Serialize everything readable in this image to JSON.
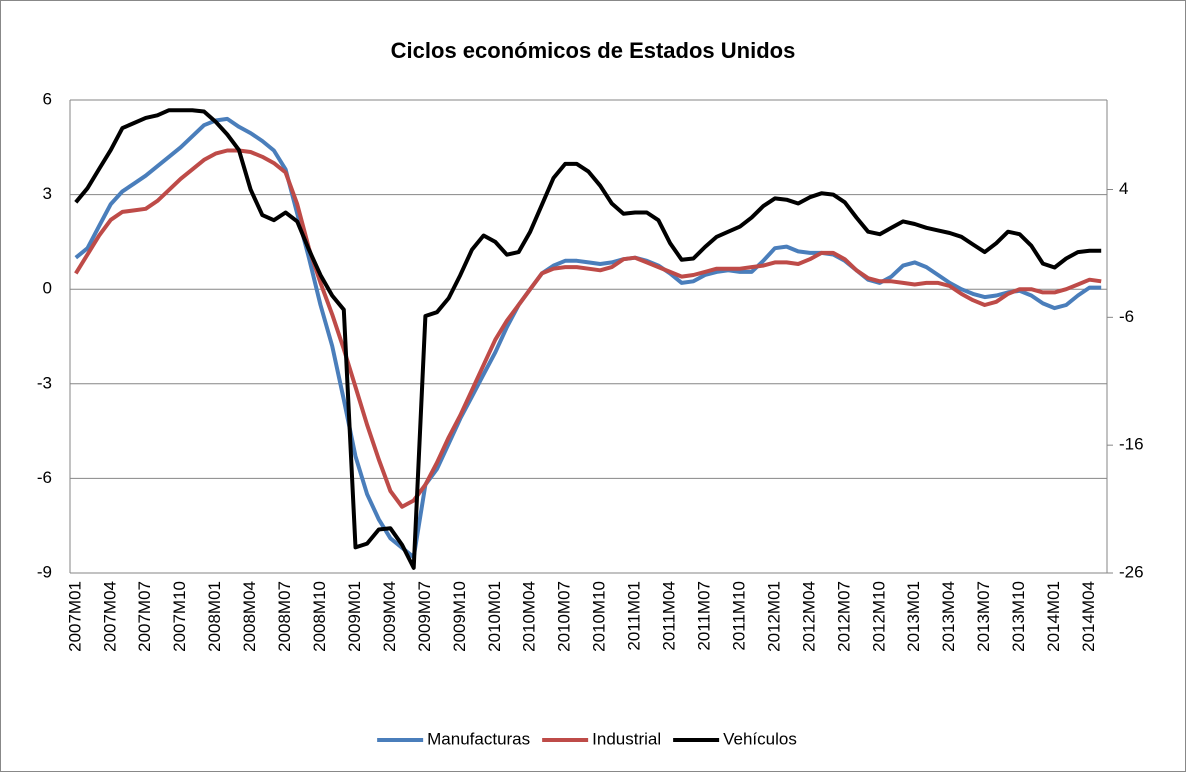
{
  "chart_data": {
    "type": "line",
    "title": "Ciclos económicos de Estados Unidos",
    "categories": [
      "2007M01",
      null,
      null,
      "2007M04",
      null,
      null,
      "2007M07",
      null,
      null,
      "2007M10",
      null,
      null,
      "2008M01",
      null,
      null,
      "2008M04",
      null,
      null,
      "2008M07",
      null,
      null,
      "2008M10",
      null,
      null,
      "2009M01",
      null,
      null,
      "2009M04",
      null,
      null,
      "2009M07",
      null,
      null,
      "2009M10",
      null,
      null,
      "2010M01",
      null,
      null,
      "2010M04",
      null,
      null,
      "2010M07",
      null,
      null,
      "2010M10",
      null,
      null,
      "2011M01",
      null,
      null,
      "2011M04",
      null,
      null,
      "2011M07",
      null,
      null,
      "2011M10",
      null,
      null,
      "2012M01",
      null,
      null,
      "2012M04",
      null,
      null,
      "2012M07",
      null,
      null,
      "2012M10",
      null,
      null,
      "2013M01",
      null,
      null,
      "2013M04",
      null,
      null,
      "2013M07",
      null,
      null,
      "2013M10",
      null,
      null,
      "2014M01",
      null,
      null,
      "2014M04",
      null
    ],
    "series": [
      {
        "name": "Manufacturas",
        "color": "#4a7ebb",
        "values": [
          1.0,
          1.3,
          2.0,
          2.7,
          3.1,
          3.35,
          3.6,
          3.9,
          4.2,
          4.5,
          4.85,
          5.2,
          5.35,
          5.4,
          5.15,
          4.95,
          4.7,
          4.4,
          3.8,
          2.4,
          1.0,
          -0.5,
          -1.8,
          -3.5,
          -5.3,
          -6.5,
          -7.3,
          -7.9,
          -8.2,
          -8.5,
          -6.2,
          -5.7,
          -4.9,
          -4.1,
          -3.4,
          -2.7,
          -2.0,
          -1.2,
          -0.5,
          0.0,
          0.5,
          0.75,
          0.9,
          0.9,
          0.85,
          0.8,
          0.85,
          0.95,
          1.0,
          0.9,
          0.75,
          0.5,
          0.2,
          0.25,
          0.45,
          0.55,
          0.6,
          0.55,
          0.55,
          0.9,
          1.3,
          1.35,
          1.2,
          1.15,
          1.15,
          1.1,
          0.9,
          0.6,
          0.3,
          0.2,
          0.4,
          0.75,
          0.85,
          0.7,
          0.45,
          0.2,
          0.0,
          -0.15,
          -0.25,
          -0.2,
          -0.1,
          -0.05,
          -0.2,
          -0.45,
          -0.6,
          -0.5,
          -0.2,
          0.05,
          0.05
        ]
      },
      {
        "name": "Industrial",
        "color": "#be4b48",
        "values": [
          0.5,
          1.1,
          1.7,
          2.2,
          2.45,
          2.5,
          2.55,
          2.8,
          3.15,
          3.5,
          3.8,
          4.1,
          4.3,
          4.4,
          4.4,
          4.35,
          4.2,
          4.0,
          3.7,
          2.7,
          1.3,
          0.2,
          -0.8,
          -1.9,
          -3.1,
          -4.3,
          -5.4,
          -6.4,
          -6.9,
          -6.7,
          -6.2,
          -5.5,
          -4.7,
          -4.0,
          -3.2,
          -2.4,
          -1.6,
          -1.0,
          -0.5,
          0.0,
          0.5,
          0.65,
          0.7,
          0.7,
          0.65,
          0.6,
          0.7,
          0.95,
          1.0,
          0.85,
          0.7,
          0.55,
          0.4,
          0.45,
          0.55,
          0.65,
          0.65,
          0.65,
          0.7,
          0.75,
          0.85,
          0.85,
          0.8,
          0.95,
          1.15,
          1.15,
          0.95,
          0.6,
          0.35,
          0.25,
          0.25,
          0.2,
          0.15,
          0.2,
          0.2,
          0.1,
          -0.15,
          -0.35,
          -0.5,
          -0.4,
          -0.15,
          0.0,
          0.0,
          -0.1,
          -0.1,
          0.0,
          0.15,
          0.3,
          0.25
        ]
      },
      {
        "name": "Vehículos",
        "color": "#000000",
        "axis": "y2",
        "values": [
          3.0,
          4.1,
          5.6,
          7.1,
          8.8,
          9.2,
          9.6,
          9.8,
          10.2,
          10.2,
          10.2,
          10.1,
          9.3,
          8.3,
          7.1,
          4.0,
          2.0,
          1.6,
          2.2,
          1.5,
          -0.7,
          -2.7,
          -4.3,
          -5.4,
          -24.0,
          -23.7,
          -22.6,
          -22.5,
          -23.8,
          -25.6,
          -5.9,
          -5.6,
          -4.5,
          -2.7,
          -0.7,
          0.4,
          -0.1,
          -1.1,
          -0.9,
          0.7,
          2.8,
          4.9,
          6.0,
          6.0,
          5.4,
          4.3,
          2.9,
          2.1,
          2.2,
          2.2,
          1.6,
          -0.2,
          -1.5,
          -1.4,
          -0.5,
          0.3,
          0.7,
          1.1,
          1.8,
          2.7,
          3.3,
          3.2,
          2.9,
          3.4,
          3.7,
          3.6,
          3.0,
          1.8,
          0.7,
          0.5,
          1.0,
          1.5,
          1.3,
          1.0,
          0.8,
          0.6,
          0.3,
          -0.3,
          -0.9,
          -0.2,
          0.7,
          0.5,
          -0.4,
          -1.8,
          -2.1,
          -1.4,
          -0.9,
          -0.8,
          -0.8
        ]
      }
    ],
    "ylim": [
      -9,
      6
    ],
    "yticks": [
      -9,
      -6,
      -3,
      0,
      3,
      6
    ],
    "y2lim": [
      -26,
      11
    ],
    "y2ticks": [
      -26,
      -16,
      -6,
      4
    ],
    "grid": true,
    "legend": "bottom"
  }
}
